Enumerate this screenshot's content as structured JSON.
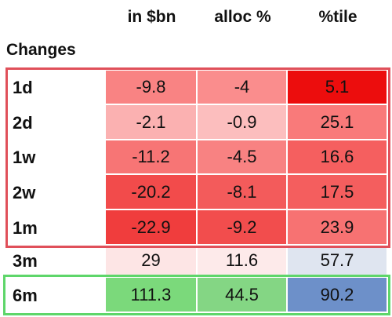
{
  "table": {
    "columns": [
      "in $bn",
      "alloc %",
      "%tile"
    ],
    "section": "Changes",
    "rows": [
      [
        "1d",
        "-9.8",
        "-4",
        "5.1"
      ],
      [
        "2d",
        "-2.1",
        "-0.9",
        "25.1"
      ],
      [
        "1w",
        "-11.2",
        "-4.5",
        "16.6"
      ],
      [
        "2w",
        "-20.2",
        "-8.1",
        "17.5"
      ],
      [
        "1m",
        "-22.9",
        "-9.2",
        "23.9"
      ],
      [
        "3m",
        "29",
        "11.6",
        "57.7"
      ],
      [
        "6m",
        "111.3",
        "44.5",
        "90.2"
      ]
    ]
  }
}
